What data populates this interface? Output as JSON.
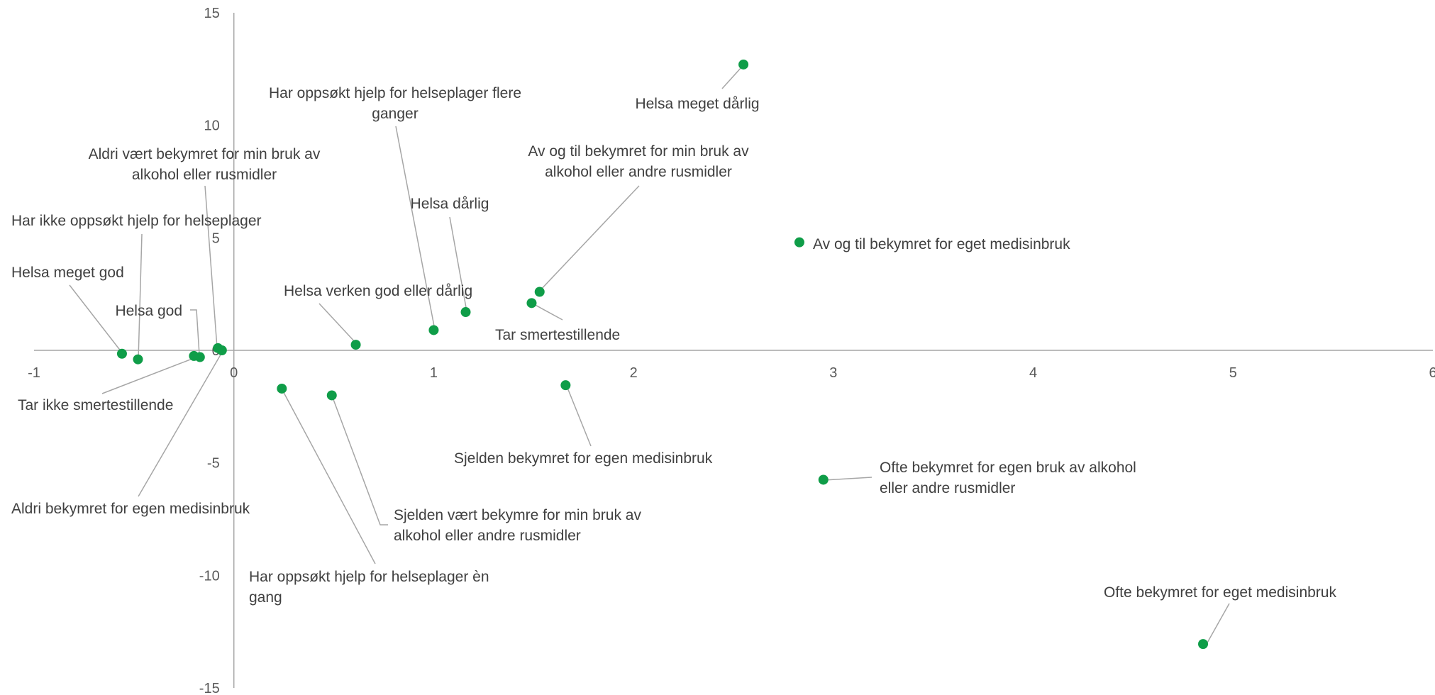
{
  "chart_data": {
    "type": "scatter",
    "xlim": [
      -1,
      6
    ],
    "ylim": [
      -15,
      15
    ],
    "x_ticks": [
      "-1",
      "0",
      "1",
      "2",
      "3",
      "4",
      "5",
      "6"
    ],
    "y_ticks": [
      "15",
      "10",
      "5",
      "0",
      "-5",
      "-10",
      "-15"
    ],
    "grid": false,
    "marker_color": "#0f9d48",
    "points": [
      {
        "label": [
          "Helsa meget dårlig"
        ],
        "x": 2.55,
        "y": 12.7
      },
      {
        "label": [
          "Har oppsøkt hjelp for helseplager flere",
          "ganger"
        ],
        "x": 1.0,
        "y": 0.9
      },
      {
        "label": [
          "Aldri vært bekymret for min bruk av",
          "alkohol eller rusmidler"
        ],
        "x": -0.08,
        "y": 0.1
      },
      {
        "label": [
          "Av og til bekymret for min bruk av",
          "alkohol eller andre rusmidler"
        ],
        "x": 1.53,
        "y": 2.6
      },
      {
        "label": [
          "Helsa dårlig"
        ],
        "x": 1.16,
        "y": 1.7
      },
      {
        "label": [
          "Har ikke oppsøkt hjelp for helseplager"
        ],
        "x": -0.48,
        "y": -0.4
      },
      {
        "label": [
          "Av og til bekymret for eget medisinbruk"
        ],
        "x": 2.83,
        "y": 4.8
      },
      {
        "label": [
          "Helsa meget god"
        ],
        "x": -0.56,
        "y": -0.15
      },
      {
        "label": [
          "Helsa god"
        ],
        "x": -0.17,
        "y": -0.3
      },
      {
        "label": [
          "Helsa verken god eller dårlig"
        ],
        "x": 0.61,
        "y": 0.25
      },
      {
        "label": [
          "Tar smertestillende"
        ],
        "x": 1.49,
        "y": 2.1
      },
      {
        "label": [
          "Tar ikke smertestillende"
        ],
        "x": -0.2,
        "y": -0.25
      },
      {
        "label": [
          "Sjelden bekymret for egen medisinbruk"
        ],
        "x": 1.66,
        "y": -1.55
      },
      {
        "label": [
          "Ofte bekymret for egen bruk av alkohol",
          "eller andre rusmidler"
        ],
        "x": 2.95,
        "y": -5.75
      },
      {
        "label": [
          "Aldri bekymret for egen medisinbruk"
        ],
        "x": -0.06,
        "y": 0.0
      },
      {
        "label": [
          "Sjelden vært bekymre for min bruk av",
          "alkohol eller andre rusmidler"
        ],
        "x": 0.49,
        "y": -2.0
      },
      {
        "label": [
          "Har oppsøkt hjelp for helseplager èn",
          "gang"
        ],
        "x": 0.24,
        "y": -1.7
      },
      {
        "label": [
          "Ofte bekymret for eget medisinbruk"
        ],
        "x": 4.85,
        "y": -13.05
      }
    ]
  }
}
